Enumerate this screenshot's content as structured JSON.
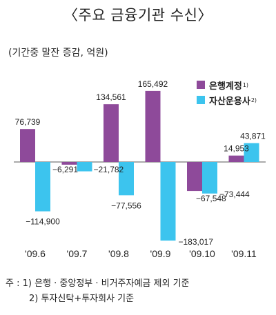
{
  "chart_data": {
    "type": "bar",
    "title": "〈주요 금융기관 수신〉",
    "unit_label": "(기간중 말잔 증감, 억원)",
    "categories": [
      "'09.6",
      "'09.7",
      "'09.8",
      "'09.9",
      "'09.10",
      "'09.11"
    ],
    "series": [
      {
        "name": "은행계정",
        "note_mark": "1)",
        "color": "#8e4a9a",
        "values": [
          76739,
          -6291,
          134561,
          165492,
          -67548,
          14953
        ],
        "labels": [
          "76,739",
          "−6,291",
          "134,561",
          "165,492",
          "−67,548",
          "14,953"
        ]
      },
      {
        "name": "자산운용사",
        "note_mark": "2)",
        "color": "#3cc4ee",
        "values": [
          -114900,
          -21782,
          -77556,
          -183017,
          -73444,
          43871
        ],
        "labels": [
          "−114,900",
          "−21,782",
          "−77,556",
          "−183,017",
          "−73,444",
          "43,871"
        ]
      }
    ],
    "legend_position": "top-right",
    "grid": false
  },
  "notes": {
    "line1": "주 : 1) 은행 · 중앙정부 · 비거주자예금 제외 기준",
    "line2": "2) 투자신탁+투자회사 기준"
  }
}
